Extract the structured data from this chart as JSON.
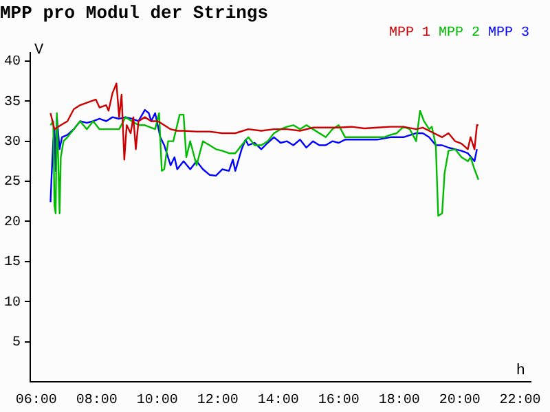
{
  "chart_data": {
    "type": "line",
    "title": "MPP pro Modul der Strings",
    "xlabel": "h",
    "ylabel": "V",
    "xlim": [
      5.8,
      22.35
    ],
    "ylim": [
      0,
      41
    ],
    "xticks": [
      {
        "value": 6,
        "label": "06:00"
      },
      {
        "value": 8,
        "label": "08:00"
      },
      {
        "value": 10,
        "label": "10:00"
      },
      {
        "value": 12,
        "label": "12:00"
      },
      {
        "value": 14,
        "label": "14:00"
      },
      {
        "value": 16,
        "label": "16:00"
      },
      {
        "value": 18,
        "label": "18:00"
      },
      {
        "value": 20,
        "label": "20:00"
      },
      {
        "value": 22,
        "label": "22:00"
      }
    ],
    "yticks": [
      5,
      10,
      15,
      20,
      25,
      30,
      35,
      40
    ],
    "grid": false,
    "legend": "top right",
    "marker": "none",
    "line_style": "solid",
    "series": [
      {
        "name": "MPP 1",
        "color": "#cc0000",
        "x": [
          6.47,
          6.6,
          6.81,
          7.03,
          7.24,
          7.45,
          7.67,
          7.97,
          8.09,
          8.31,
          8.39,
          8.52,
          8.65,
          8.74,
          8.82,
          8.91,
          8.99,
          9.12,
          9.21,
          9.29,
          9.38,
          9.59,
          9.8,
          10.02,
          10.23,
          10.44,
          10.66,
          10.87,
          11.3,
          11.73,
          12.15,
          12.58,
          13.01,
          13.44,
          13.86,
          14.29,
          14.72,
          15.15,
          15.57,
          16.0,
          16.43,
          16.85,
          17.28,
          17.71,
          18.14,
          18.56,
          18.78,
          18.99,
          19.42,
          19.63,
          19.85,
          20.06,
          20.27,
          20.36,
          20.49,
          20.57,
          20.62
        ],
        "values": [
          33.5,
          31.5,
          32,
          32.5,
          34,
          34.5,
          34.8,
          35.2,
          34.2,
          34.5,
          33.8,
          36,
          37.2,
          33,
          35.8,
          27.7,
          32,
          31,
          33,
          29,
          32.5,
          33,
          32.5,
          32.5,
          32,
          31.5,
          31.3,
          31.3,
          31.2,
          31.2,
          31,
          31,
          31.5,
          31.3,
          31.5,
          31.5,
          31.3,
          31.7,
          31.7,
          31.7,
          31.8,
          31.6,
          31.7,
          31.8,
          31.8,
          31.5,
          31.7,
          31.3,
          30.5,
          31,
          30,
          29.7,
          29,
          30.5,
          29,
          32,
          32
        ]
      },
      {
        "name": "MPP 2",
        "color": "#00bb00",
        "x": [
          6.47,
          6.56,
          6.6,
          6.64,
          6.68,
          6.73,
          6.77,
          6.81,
          6.9,
          7.03,
          7.24,
          7.45,
          7.67,
          7.88,
          8.09,
          8.31,
          8.74,
          8.95,
          9.16,
          9.38,
          9.59,
          9.93,
          10.06,
          10.15,
          10.23,
          10.36,
          10.53,
          10.74,
          10.87,
          10.96,
          11.09,
          11.3,
          11.51,
          11.73,
          11.94,
          12.15,
          12.37,
          12.58,
          12.79,
          13.01,
          13.22,
          13.44,
          13.65,
          13.86,
          14.08,
          14.29,
          14.5,
          14.72,
          14.93,
          15.15,
          15.57,
          15.79,
          16.0,
          16.21,
          16.43,
          16.85,
          17.28,
          17.5,
          17.71,
          17.92,
          18.14,
          18.35,
          18.56,
          18.69,
          18.82,
          18.99,
          19.08,
          19.21,
          19.29,
          19.42,
          19.5,
          19.63,
          19.85,
          20.06,
          20.27,
          20.36,
          20.49,
          20.62
        ],
        "values": [
          32,
          32.5,
          22,
          21,
          33.5,
          27,
          21,
          28,
          30,
          30.5,
          31.5,
          32.5,
          31.5,
          32.5,
          31.5,
          31.5,
          31.5,
          33,
          32.5,
          32,
          32,
          31.5,
          33.5,
          26.3,
          26.5,
          30,
          30,
          33.3,
          33.3,
          28,
          30,
          27,
          30,
          29.5,
          29,
          28.8,
          28.5,
          28.5,
          29.5,
          30.5,
          29.5,
          29.5,
          30,
          31,
          31.5,
          31.8,
          32,
          31.5,
          32,
          31.5,
          30.5,
          31.5,
          32,
          30.5,
          30.5,
          30.5,
          30.5,
          30.5,
          30.8,
          31,
          31.8,
          31.5,
          30,
          33.8,
          32.5,
          31.5,
          31.8,
          29.5,
          20.7,
          21,
          26,
          28.8,
          29,
          28,
          27.5,
          28,
          26.5,
          25.2
        ]
      },
      {
        "name": "MPP 3",
        "color": "#0000ff",
        "x": [
          6.47,
          6.51,
          6.56,
          6.6,
          6.64,
          6.68,
          6.77,
          6.85,
          7.03,
          7.24,
          7.45,
          7.67,
          7.88,
          8.09,
          8.31,
          8.52,
          8.74,
          8.95,
          9.16,
          9.38,
          9.59,
          9.72,
          9.8,
          9.93,
          10.1,
          10.23,
          10.44,
          10.57,
          10.66,
          10.87,
          11.09,
          11.3,
          11.51,
          11.73,
          11.94,
          12.15,
          12.37,
          12.5,
          12.58,
          12.79,
          12.92,
          13.01,
          13.22,
          13.44,
          13.65,
          13.86,
          14.08,
          14.29,
          14.5,
          14.72,
          14.93,
          15.15,
          15.36,
          15.57,
          15.79,
          16.0,
          16.21,
          16.43,
          16.85,
          17.28,
          17.71,
          18.14,
          18.56,
          18.78,
          18.99,
          19.21,
          19.42,
          19.63,
          19.85,
          20.06,
          20.27,
          20.49,
          20.57
        ],
        "values": [
          22.4,
          26,
          30,
          31.5,
          26.3,
          33,
          29,
          30.5,
          30.8,
          31.5,
          32.5,
          32.3,
          32.5,
          32.8,
          32.5,
          33,
          32.8,
          33,
          32.8,
          32.5,
          33.9,
          33.5,
          32.5,
          33.5,
          30.5,
          29.5,
          27,
          28,
          26.5,
          27.5,
          26.5,
          27.5,
          26.5,
          25.8,
          25.7,
          26.5,
          26.3,
          27.7,
          26.3,
          29,
          30.2,
          29.5,
          29.8,
          29,
          29.8,
          30.5,
          29.8,
          30,
          29.5,
          30.2,
          29.2,
          30,
          29.5,
          29.5,
          30,
          29.8,
          30.2,
          30.2,
          30.2,
          30.2,
          30.5,
          30.5,
          31,
          31,
          30.5,
          29.5,
          29.5,
          29.2,
          29,
          28.8,
          28.5,
          27.5,
          29
        ]
      }
    ]
  }
}
